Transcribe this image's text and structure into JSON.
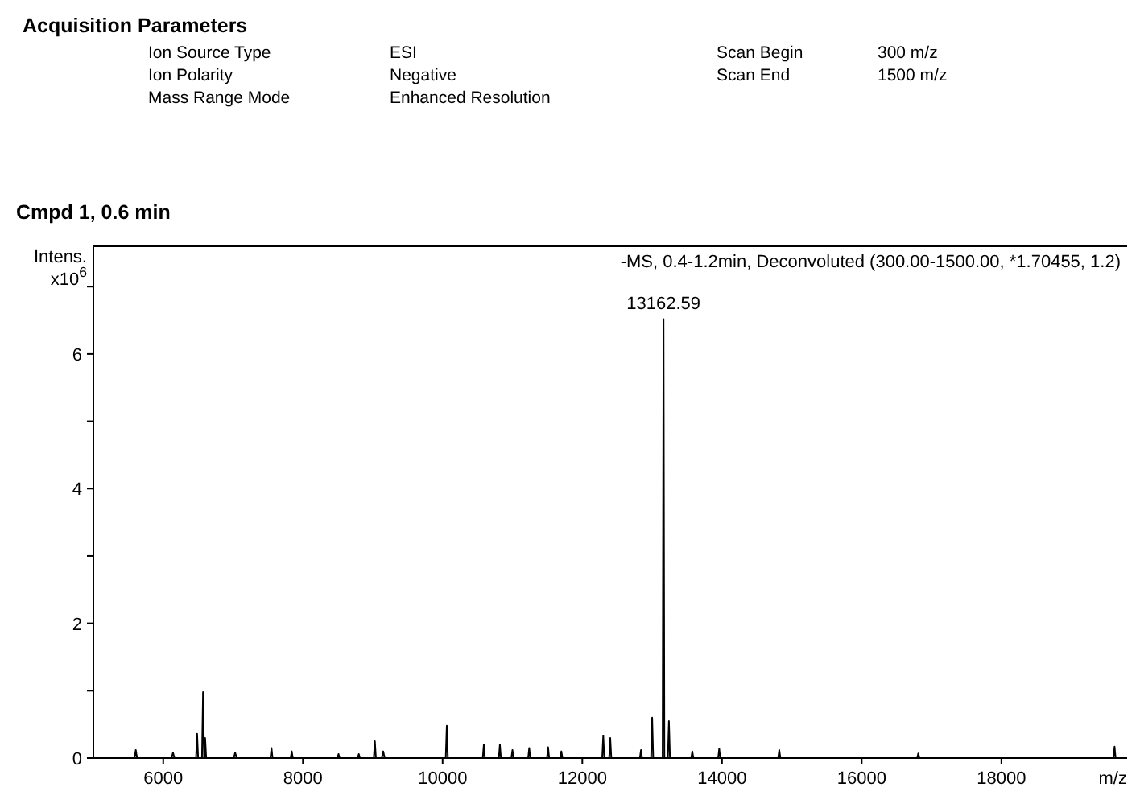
{
  "chart_data": {
    "type": "line",
    "title": "Acquisition Parameters",
    "subtitle": "Cmpd 1, 0.6 min",
    "xlabel": "m/z",
    "ylabel": "Intens. x10$^{6}$",
    "annotations": [
      "Ion Source Type",
      "ESI",
      "Ion Polarity",
      "Negative",
      "Mass Range Mode",
      "Enhanced Resolution",
      "Scan Begin",
      "300 m/z",
      "Scan End",
      "1500 m/z",
      "-MS, 0.4-1.2min, Deconvoluted (300.00-1500.00, *1.70455, 1.2)",
      {
        "text": "13162.59",
        "x": 13162.59,
        "y": 6.52
      }
    ],
    "xlim": [
      5000,
      19800
    ],
    "xticks": [
      6000,
      8000,
      10000,
      12000,
      14000,
      16000,
      18000
    ],
    "ylim": [
      0,
      7.6
    ],
    "yticks": [
      0,
      {
        "value": 1,
        "label": null
      },
      2,
      {
        "value": 3,
        "label": null
      },
      4,
      {
        "value": 5,
        "label": null
      },
      6,
      {
        "value": 7,
        "label": null
      }
    ],
    "line_style": "solid",
    "marker": "none",
    "series": [
      {
        "color": "#000000",
        "x": [
          5000,
          5590,
          5607,
          5625,
          6120,
          6140,
          6160,
          6470,
          6485,
          6500,
          6555,
          6570,
          6585,
          6590,
          6600,
          6615,
          7010,
          7030,
          7050,
          7535,
          7550,
          7565,
          7825,
          7840,
          7855,
          8495,
          8510,
          8525,
          8785,
          8800,
          8815,
          9015,
          9030,
          9045,
          9130,
          9150,
          9170,
          10045,
          10060,
          10075,
          10575,
          10590,
          10605,
          10805,
          10820,
          10835,
          10985,
          11000,
          11015,
          11225,
          11240,
          11255,
          11495,
          11510,
          11525,
          11685,
          11700,
          11715,
          12285,
          12300,
          12315,
          12385,
          12400,
          12415,
          12825,
          12840,
          12855,
          12985,
          13000,
          13015,
          13150,
          13162.59,
          13175,
          13225,
          13240,
          13255,
          13560,
          13575,
          13590,
          13945,
          13960,
          13975,
          14805,
          14820,
          14835,
          16795,
          16810,
          16825,
          19605,
          19620,
          19635,
          19800
        ],
        "values": [
          0,
          0,
          0.12,
          0,
          0,
          0.08,
          0,
          0,
          0.36,
          0,
          0,
          0.98,
          0,
          0,
          0.3,
          0,
          0,
          0.08,
          0,
          0,
          0.15,
          0,
          0,
          0.1,
          0,
          0,
          0.06,
          0,
          0,
          0.06,
          0,
          0,
          0.25,
          0,
          0,
          0.1,
          0,
          0,
          0.48,
          0,
          0,
          0.2,
          0,
          0,
          0.2,
          0,
          0,
          0.12,
          0,
          0,
          0.15,
          0,
          0,
          0.16,
          0,
          0,
          0.1,
          0,
          0,
          0.33,
          0,
          0,
          0.3,
          0,
          0,
          0.12,
          0,
          0,
          0.6,
          0,
          0,
          6.52,
          0,
          0,
          0.55,
          0,
          0,
          0.1,
          0,
          0,
          0.14,
          0,
          0,
          0.12,
          0,
          0,
          0.07,
          0,
          0,
          0.17,
          0,
          0
        ]
      }
    ]
  }
}
